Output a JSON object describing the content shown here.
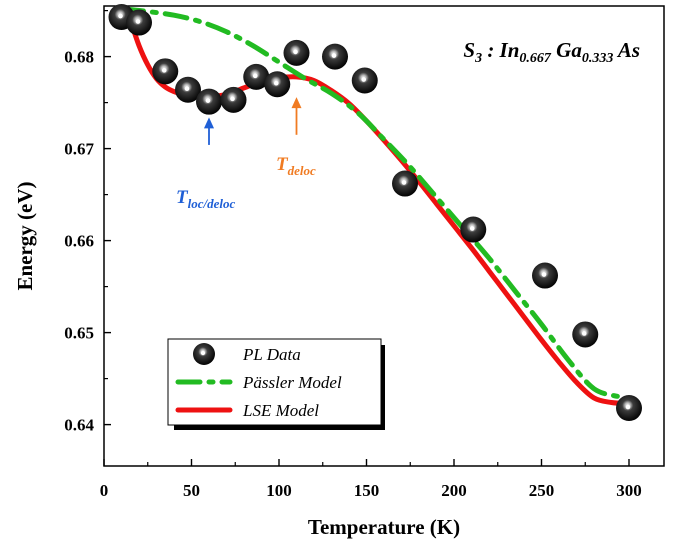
{
  "chart_data": {
    "type": "scatter",
    "xlabel": "Temperature (K)",
    "ylabel": "Energy (eV)",
    "xlim": [
      0,
      320
    ],
    "ylim": [
      0.6355,
      0.6855
    ],
    "x_ticks": [
      0,
      50,
      100,
      150,
      200,
      250,
      300
    ],
    "y_ticks": [
      0.64,
      0.65,
      0.66,
      0.67,
      0.68
    ],
    "grid": false,
    "legend_position": "bottom-left",
    "legend": [
      "PL Data",
      "Pässler Model",
      "LSE Model"
    ],
    "series": [
      {
        "name": "PL Data",
        "kind": "scatter",
        "color": "#111111",
        "x": [
          10,
          20,
          35,
          48,
          60,
          74,
          87,
          99,
          110,
          132,
          149,
          172,
          211,
          252,
          275,
          300
        ],
        "y": [
          0.6843,
          0.6837,
          0.6784,
          0.6764,
          0.6751,
          0.6753,
          0.6778,
          0.677,
          0.6804,
          0.68,
          0.6774,
          0.6662,
          0.6612,
          0.6562,
          0.6498,
          0.6418
        ]
      },
      {
        "name": "Pässler Model",
        "kind": "line",
        "style": "dash-dot",
        "color": "#22bb22",
        "x": [
          10,
          25,
          40,
          55,
          70,
          85,
          100,
          115,
          130,
          145,
          160,
          175,
          190,
          205,
          220,
          235,
          250,
          265,
          280,
          295,
          299
        ],
        "y": [
          0.6852,
          0.6849,
          0.6845,
          0.6838,
          0.6827,
          0.6812,
          0.6794,
          0.6776,
          0.676,
          0.6739,
          0.671,
          0.668,
          0.6647,
          0.6614,
          0.6581,
          0.6545,
          0.6509,
          0.6471,
          0.6439,
          0.643,
          0.6428
        ]
      },
      {
        "name": "LSE Model",
        "kind": "line",
        "style": "solid",
        "color": "#ee1111",
        "x": [
          10,
          15,
          20,
          25,
          30,
          35,
          40,
          45,
          50,
          55,
          60,
          70,
          80,
          90,
          100,
          110,
          120,
          130,
          140,
          150,
          160,
          170,
          180,
          190,
          200,
          210,
          220,
          230,
          240,
          250,
          260,
          270,
          280,
          290,
          299
        ],
        "y": [
          0.6868,
          0.684,
          0.6812,
          0.6791,
          0.6776,
          0.6767,
          0.6762,
          0.6759,
          0.6757,
          0.6756,
          0.6756,
          0.6759,
          0.6766,
          0.6773,
          0.6777,
          0.6778,
          0.6774,
          0.6763,
          0.6749,
          0.673,
          0.6709,
          0.6687,
          0.6664,
          0.664,
          0.6616,
          0.6592,
          0.6567,
          0.6542,
          0.6517,
          0.6492,
          0.6468,
          0.6446,
          0.6429,
          0.6424,
          0.6423
        ]
      }
    ],
    "annotations": [
      {
        "id": "tloc",
        "main": "T",
        "sub": "loc/deloc",
        "color": "#1f5fd6",
        "arrow_x": 60,
        "arrow_y_from": 0.6704,
        "arrow_y_to": 0.6734
      },
      {
        "id": "tdeloc",
        "main": "T",
        "sub": "deloc",
        "color": "#f07b22",
        "arrow_x": 110,
        "arrow_y_from": 0.6715,
        "arrow_y_to": 0.6756
      }
    ],
    "sample_label": {
      "parts": [
        {
          "t": "S",
          "style": "normal"
        },
        {
          "t": "3",
          "style": "sub"
        },
        {
          "t": " : In",
          "style": "normal"
        },
        {
          "t": "0.667",
          "style": "sub"
        },
        {
          "t": " Ga",
          "style": "normal"
        },
        {
          "t": "0.333",
          "style": "sub"
        },
        {
          "t": " As",
          "style": "normal"
        }
      ]
    }
  }
}
